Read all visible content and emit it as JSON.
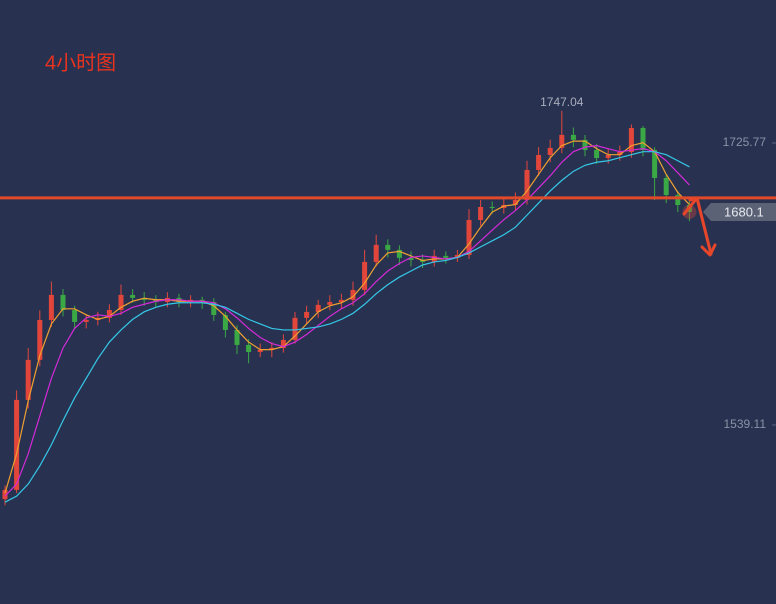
{
  "chart_data": {
    "type": "candlestick",
    "title": "4小时图",
    "up_color": "#e2463b",
    "down_color": "#3aa845",
    "open": [
      1490,
      1496.1,
      1555.7,
      1582.2,
      1608.6,
      1625.2,
      1615.2,
      1607.3,
      1608.6,
      1610.0,
      1615.2,
      1625.2,
      1623.2,
      1621.9,
      1620.5,
      1623.2,
      1620.5,
      1621.9,
      1620.5,
      1611.9,
      1602.0,
      1592.1,
      1587.4,
      1588.8,
      1590.1,
      1595.4,
      1610.0,
      1613.9,
      1618.6,
      1620.5,
      1621.9,
      1628.5,
      1647.0,
      1658.3,
      1655.0,
      1649.7,
      1648.3,
      1647.0,
      1651.0,
      1649.7,
      1651.6,
      1674.8,
      1683.4,
      1682.7,
      1684.7,
      1688.0,
      1707.9,
      1717.8,
      1722.5,
      1731.1,
      1727.8,
      1721.1,
      1715.8,
      1717.8,
      1719.8,
      1735.7,
      1721.1,
      1702.6,
      1691.3,
      1684.7
    ],
    "high": [
      1499,
      1562,
      1590,
      1615,
      1634,
      1629,
      1618,
      1612,
      1614,
      1619,
      1632,
      1629,
      1627,
      1625,
      1627,
      1626,
      1625,
      1624,
      1623,
      1614,
      1605,
      1596,
      1593,
      1594,
      1599,
      1614,
      1618,
      1622,
      1625,
      1626,
      1634,
      1655,
      1665,
      1662,
      1658,
      1654,
      1652,
      1655,
      1654,
      1655,
      1682,
      1688,
      1687,
      1689,
      1693,
      1714,
      1723,
      1728,
      1747.04,
      1736,
      1731,
      1725,
      1722,
      1724,
      1738,
      1737,
      1723,
      1705,
      1694,
      1688
    ],
    "low": [
      1486,
      1494,
      1550,
      1578,
      1604,
      1611,
      1603,
      1603,
      1605,
      1607,
      1612,
      1620,
      1618,
      1617,
      1617,
      1617,
      1617,
      1616,
      1608,
      1597,
      1586,
      1580,
      1584,
      1584,
      1587,
      1593,
      1606,
      1610,
      1615,
      1616,
      1618,
      1625,
      1644,
      1650,
      1645,
      1644,
      1643,
      1644,
      1646,
      1647,
      1649,
      1671,
      1679,
      1679,
      1681,
      1685,
      1704,
      1713,
      1719,
      1723,
      1717,
      1712,
      1712,
      1714,
      1716,
      1717,
      1688,
      1686,
      1680,
      1674
    ],
    "close": [
      1496.1,
      1555.7,
      1582.2,
      1608.6,
      1625.2,
      1615.2,
      1607.3,
      1608.6,
      1610.0,
      1615.2,
      1625.2,
      1623.2,
      1621.9,
      1620.5,
      1623.2,
      1620.5,
      1621.9,
      1620.5,
      1611.9,
      1602.0,
      1592.1,
      1587.4,
      1588.8,
      1590.1,
      1595.4,
      1610.0,
      1613.9,
      1618.6,
      1620.5,
      1621.9,
      1628.5,
      1647.0,
      1658.3,
      1655.0,
      1649.7,
      1648.3,
      1647.0,
      1651.0,
      1649.7,
      1651.6,
      1674.8,
      1683.4,
      1682.7,
      1684.7,
      1688.0,
      1707.9,
      1717.8,
      1722.5,
      1731.1,
      1727.8,
      1721.1,
      1715.8,
      1717.8,
      1719.8,
      1735.7,
      1721.1,
      1702.6,
      1691.3,
      1684.7,
      1680.1
    ],
    "series": [
      {
        "color": "#f0a030",
        "values": [
          1494,
          1520,
          1555,
          1585,
          1606,
          1616,
          1616,
          1612,
          1609,
          1611,
          1617,
          1621,
          1623,
          1622,
          1622,
          1621,
          1621,
          1621,
          1618,
          1611,
          1602,
          1594,
          1589,
          1589,
          1591,
          1598,
          1606,
          1614,
          1618,
          1620,
          1624,
          1633,
          1645,
          1653,
          1654,
          1651,
          1648,
          1649,
          1649,
          1650,
          1659,
          1670,
          1680,
          1684,
          1685,
          1694,
          1705,
          1716,
          1724,
          1727,
          1727,
          1722,
          1718,
          1718,
          1724,
          1726,
          1720,
          1705,
          1693,
          1685
        ]
      },
      {
        "color": "#d42ad8",
        "values": [
          1492,
          1500,
          1520,
          1545,
          1570,
          1590,
          1603,
          1610,
          1612,
          1611,
          1613,
          1617,
          1619,
          1621,
          1622,
          1622,
          1621,
          1621,
          1620,
          1616,
          1610,
          1603,
          1597,
          1593,
          1591,
          1594,
          1599,
          1605,
          1611,
          1616,
          1620,
          1626,
          1634,
          1641,
          1646,
          1650,
          1651,
          1650,
          1649,
          1650,
          1654,
          1661,
          1668,
          1675,
          1681,
          1688,
          1696,
          1704,
          1713,
          1720,
          1723,
          1724,
          1722,
          1720,
          1721,
          1722,
          1720,
          1714,
          1706,
          1698
        ]
      },
      {
        "color": "#35c8e8",
        "values": [
          1488,
          1492,
          1500,
          1512,
          1526,
          1542,
          1557,
          1570,
          1583,
          1594,
          1602,
          1609,
          1614,
          1617,
          1619,
          1620,
          1620,
          1620,
          1619,
          1617,
          1613,
          1609,
          1606,
          1603,
          1602,
          1602,
          1603,
          1604,
          1606,
          1609,
          1613,
          1619,
          1626,
          1632,
          1637,
          1641,
          1645,
          1647,
          1648,
          1650,
          1653,
          1657,
          1661,
          1665,
          1670,
          1678,
          1686,
          1694,
          1701,
          1707,
          1711,
          1713,
          1714,
          1716,
          1718,
          1720,
          1720,
          1718,
          1714,
          1710
        ]
      }
    ],
    "hline": 1689.4,
    "hline_color": "#e04a2a",
    "ylim": [
      1420.6,
      1820.4
    ],
    "yticks": [
      1725.77,
      1539.11
    ]
  }
}
